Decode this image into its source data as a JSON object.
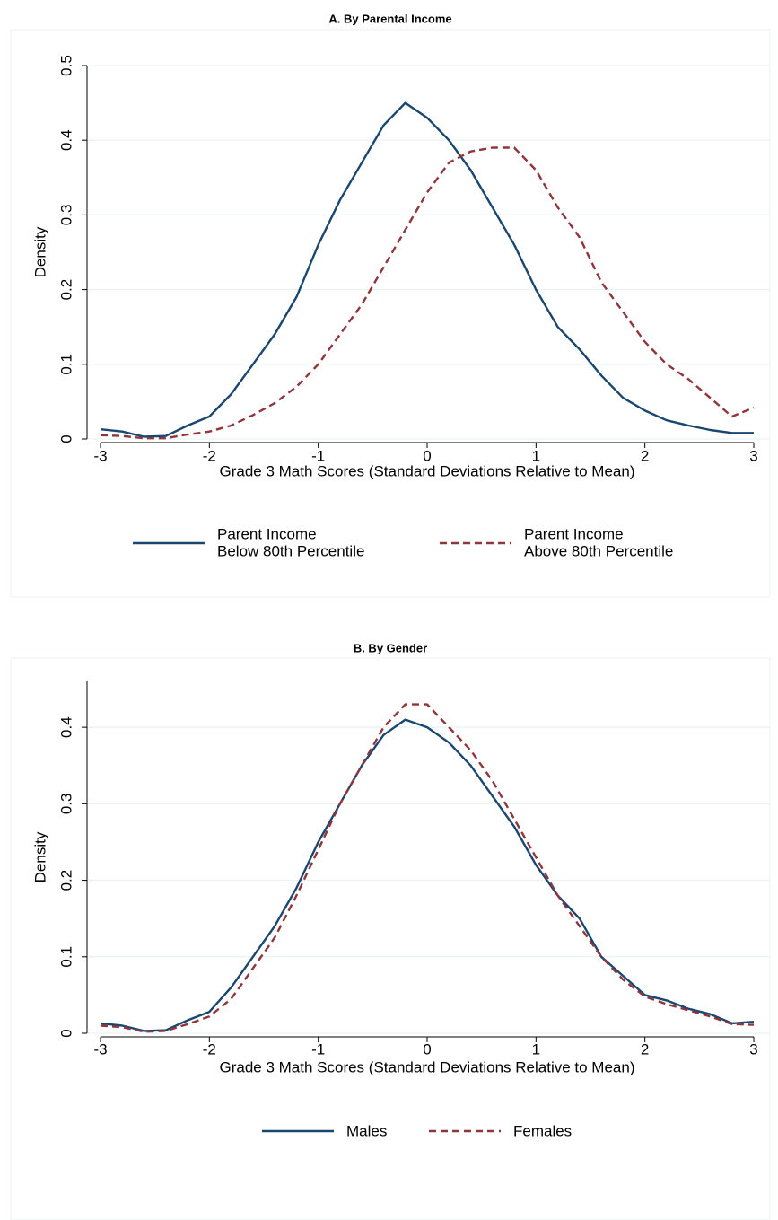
{
  "chart_data": [
    {
      "type": "line",
      "title": "A. By Parental Income",
      "xlabel": "Grade 3 Math Scores (Standard Deviations Relative to Mean)",
      "ylabel": "Density",
      "x": [
        -3,
        -2.8,
        -2.6,
        -2.4,
        -2.2,
        -2,
        -1.8,
        -1.6,
        -1.4,
        -1.2,
        -1,
        -0.8,
        -0.6,
        -0.4,
        -0.2,
        0,
        0.2,
        0.4,
        0.6,
        0.8,
        1,
        1.2,
        1.4,
        1.6,
        1.8,
        2,
        2.2,
        2.4,
        2.6,
        2.8,
        3
      ],
      "series": [
        {
          "name": "Parent Income\nBelow 80th Percentile",
          "color": "#1a476f",
          "dash": false,
          "values": [
            0.013,
            0.01,
            0.003,
            0.004,
            0.018,
            0.03,
            0.06,
            0.1,
            0.14,
            0.19,
            0.26,
            0.32,
            0.37,
            0.42,
            0.45,
            0.43,
            0.4,
            0.36,
            0.31,
            0.26,
            0.2,
            0.15,
            0.12,
            0.085,
            0.055,
            0.038,
            0.025,
            0.018,
            0.012,
            0.008,
            0.008
          ]
        },
        {
          "name": "Parent Income\nAbove 80th Percentile",
          "color": "#90353b",
          "dash": true,
          "values": [
            0.005,
            0.004,
            0.001,
            0.001,
            0.006,
            0.01,
            0.018,
            0.032,
            0.048,
            0.07,
            0.1,
            0.14,
            0.18,
            0.23,
            0.28,
            0.33,
            0.37,
            0.385,
            0.39,
            0.39,
            0.36,
            0.31,
            0.27,
            0.21,
            0.17,
            0.13,
            0.1,
            0.08,
            0.055,
            0.03,
            0.042
          ]
        }
      ],
      "xlim": [
        -3,
        3
      ],
      "xticks": [
        -3,
        -2,
        -1,
        0,
        1,
        2,
        3
      ],
      "ylim": [
        0,
        0.5
      ],
      "yticks": [
        0,
        0.1,
        0.2,
        0.3,
        0.4,
        0.5
      ],
      "grid": true
    },
    {
      "type": "line",
      "title": "B. By Gender",
      "xlabel": "Grade 3 Math Scores (Standard Deviations Relative to Mean)",
      "ylabel": "Density",
      "x": [
        -3,
        -2.8,
        -2.6,
        -2.4,
        -2.2,
        -2,
        -1.8,
        -1.6,
        -1.4,
        -1.2,
        -1,
        -0.8,
        -0.6,
        -0.4,
        -0.2,
        0,
        0.2,
        0.4,
        0.6,
        0.8,
        1,
        1.2,
        1.4,
        1.6,
        1.8,
        2,
        2.2,
        2.4,
        2.6,
        2.8,
        3
      ],
      "series": [
        {
          "name": "Males",
          "color": "#1a476f",
          "dash": false,
          "values": [
            0.013,
            0.01,
            0.003,
            0.004,
            0.017,
            0.028,
            0.06,
            0.1,
            0.14,
            0.19,
            0.25,
            0.3,
            0.35,
            0.39,
            0.41,
            0.4,
            0.38,
            0.35,
            0.31,
            0.27,
            0.22,
            0.18,
            0.15,
            0.1,
            0.075,
            0.05,
            0.043,
            0.032,
            0.025,
            0.013,
            0.015
          ]
        },
        {
          "name": "Females",
          "color": "#90353b",
          "dash": true,
          "values": [
            0.01,
            0.008,
            0.002,
            0.003,
            0.012,
            0.022,
            0.045,
            0.085,
            0.125,
            0.18,
            0.24,
            0.3,
            0.35,
            0.4,
            0.43,
            0.43,
            0.4,
            0.37,
            0.33,
            0.28,
            0.23,
            0.18,
            0.14,
            0.1,
            0.07,
            0.048,
            0.038,
            0.03,
            0.022,
            0.012,
            0.011
          ]
        }
      ],
      "xlim": [
        -3,
        3
      ],
      "xticks": [
        -3,
        -2,
        -1,
        0,
        1,
        2,
        3
      ],
      "ylim": [
        0,
        0.46
      ],
      "yticks": [
        0,
        0.1,
        0.2,
        0.3,
        0.4
      ],
      "grid": true
    }
  ]
}
